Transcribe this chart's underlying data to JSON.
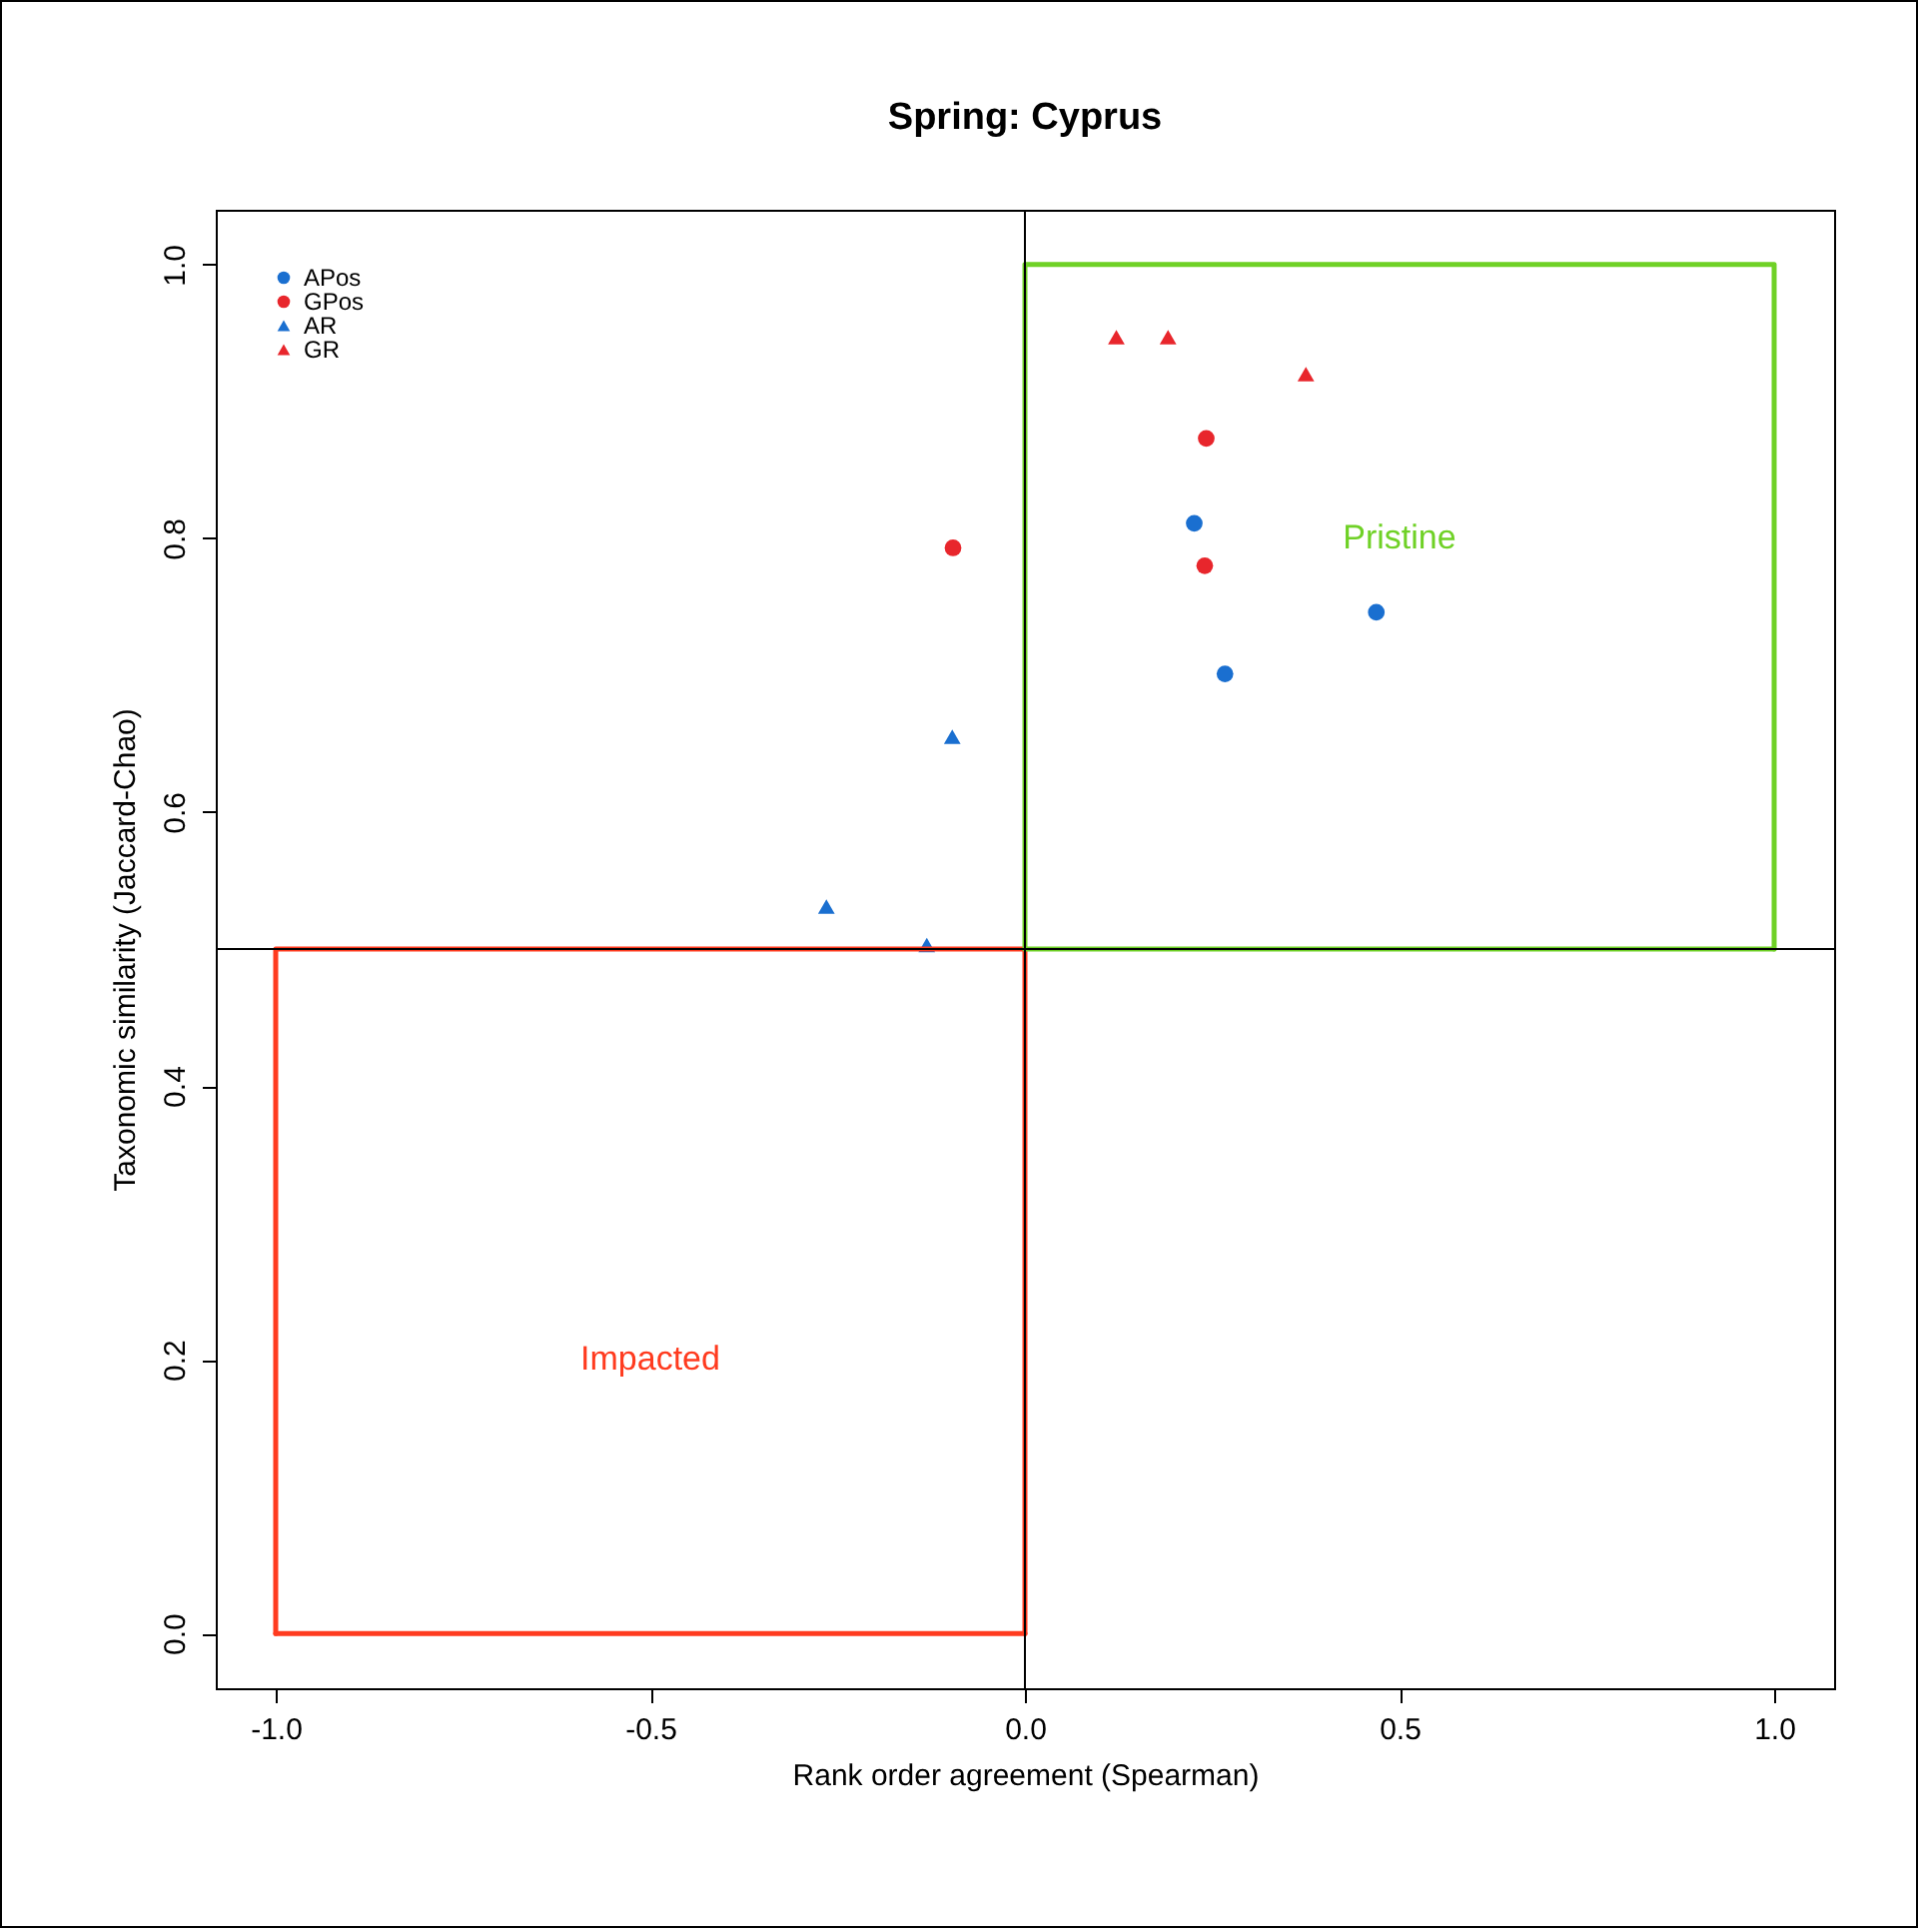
{
  "chart_data": {
    "type": "scatter",
    "title": "Spring: Cyprus",
    "xlabel": "Rank order agreement (Spearman)",
    "ylabel": "Taxonomic similarity (Jaccard-Chao)",
    "xlim": [
      -1.08,
      1.08
    ],
    "ylim": [
      -0.04,
      1.04
    ],
    "xticks": [
      {
        "value": -1,
        "label": "-1.0"
      },
      {
        "value": -0.5,
        "label": "-0.5"
      },
      {
        "value": 0,
        "label": "0.0"
      },
      {
        "value": 0.5,
        "label": "0.5"
      },
      {
        "value": 1,
        "label": "1.0"
      }
    ],
    "yticks": [
      {
        "value": 0,
        "label": "0.0"
      },
      {
        "value": 0.2,
        "label": "0.2"
      },
      {
        "value": 0.4,
        "label": "0.4"
      },
      {
        "value": 0.6,
        "label": "0.6"
      },
      {
        "value": 0.8,
        "label": "0.8"
      },
      {
        "value": 1,
        "label": "1.0"
      }
    ],
    "legend": "top left",
    "grid": false,
    "series": [
      {
        "name": "APos",
        "color": "#1a6fd0",
        "marker": "circle",
        "x": [
          0.226,
          0.469,
          0.267
        ],
        "values": [
          0.811,
          0.746,
          0.701
        ]
      },
      {
        "name": "GPos",
        "color": "#e8262c",
        "marker": "circle",
        "x": [
          0.242,
          -0.096,
          0.24
        ],
        "values": [
          0.873,
          0.793,
          0.78
        ]
      },
      {
        "name": "AR",
        "color": "#1a6fd0",
        "marker": "triangle",
        "x": [
          -0.097,
          -0.265,
          -0.131
        ],
        "values": [
          0.655,
          0.531,
          0.503
        ]
      },
      {
        "name": "GR",
        "color": "#e8262c",
        "marker": "triangle",
        "x": [
          0.122,
          0.191,
          0.375
        ],
        "values": [
          0.947,
          0.947,
          0.92
        ]
      },
      {
        "type": "line",
        "name": "Impacted",
        "color": "#ff3b1f",
        "x": [
          -1,
          -1,
          0,
          0
        ],
        "values": [
          0,
          0.5,
          0.5,
          0
        ]
      },
      {
        "type": "line",
        "color": "#ff3b1f",
        "x": [
          -1,
          0
        ],
        "values": [
          0,
          0
        ]
      },
      {
        "type": "line",
        "name": "Pristine",
        "color": "#6fd126",
        "x": [
          0,
          0,
          1,
          1
        ],
        "values": [
          0.5,
          1,
          1,
          0.5
        ]
      },
      {
        "type": "line",
        "color": "#6fd126",
        "x": [
          0,
          1
        ],
        "values": [
          0.5,
          0.5
        ]
      }
    ],
    "ref_lines": [
      {
        "axis": "x",
        "value": 0,
        "color": "#000000"
      },
      {
        "axis": "y",
        "value": 0.5,
        "color": "#000000"
      }
    ]
  }
}
